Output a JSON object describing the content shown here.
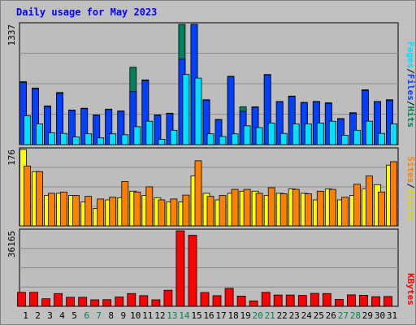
{
  "title": "Daily usage for May 2023",
  "colors": {
    "background": "#c0c0c0",
    "plot": "#bdbdbd",
    "hits": "#00805c",
    "files": "#0040ff",
    "pages": "#00e0ff",
    "visits": "#ffff00",
    "sites": "#ff8000",
    "kbytes": "#ff0000",
    "weekday_label": "#000000",
    "weekend_label": "#00805c",
    "title_text": "#0000ff"
  },
  "legend": {
    "pages": "Pages",
    "files": "Files",
    "hits": "Hits",
    "sites": "Sites",
    "visits": "Visits",
    "kbytes": "KBytes",
    "sep": "/"
  },
  "chart_data": {
    "type": "bar",
    "title": "Daily usage for May 2023",
    "x": [
      1,
      2,
      3,
      4,
      5,
      6,
      7,
      8,
      9,
      10,
      11,
      12,
      13,
      14,
      15,
      16,
      17,
      18,
      19,
      20,
      21,
      22,
      23,
      24,
      25,
      26,
      27,
      28,
      29,
      30,
      31
    ],
    "weekend_days": [
      6,
      7,
      13,
      14,
      20,
      21,
      27,
      28
    ],
    "panels": [
      {
        "name": "hits-files-pages",
        "ymax": 1337,
        "ymax_label": "1337",
        "series": [
          {
            "name": "Hits",
            "values": [
              700,
              630,
              430,
              580,
              385,
              405,
              330,
              395,
              375,
              860,
              720,
              330,
              350,
              1337,
              1337,
              500,
              280,
              760,
              420,
              420,
              780,
              480,
              540,
              470,
              480,
              465,
              290,
              355,
              610,
              480,
              500
            ]
          },
          {
            "name": "Files",
            "values": [
              690,
              620,
              425,
              570,
              380,
              400,
              325,
              390,
              370,
              590,
              710,
              325,
              345,
              950,
              1337,
              495,
              275,
              755,
              370,
              415,
              775,
              475,
              535,
              465,
              475,
              460,
              285,
              350,
              600,
              475,
              490
            ]
          },
          {
            "name": "Pages",
            "values": [
              320,
              230,
              130,
              125,
              85,
              120,
              75,
              120,
              110,
              200,
              260,
              60,
              160,
              780,
              740,
              120,
              90,
              120,
              210,
              190,
              240,
              125,
              230,
              230,
              240,
              260,
              105,
              160,
              260,
              125,
              230
            ]
          }
        ]
      },
      {
        "name": "sites-visits",
        "ymax": 176,
        "ymax_label": "176",
        "series": [
          {
            "name": "Visits",
            "values": [
              176,
              125,
              70,
              75,
              70,
              55,
              40,
              60,
              65,
              80,
              70,
              65,
              55,
              55,
              115,
              75,
              60,
              75,
              80,
              80,
              70,
              75,
              85,
              75,
              60,
              85,
              60,
              70,
              85,
              95,
              140
            ]
          },
          {
            "name": "Sites",
            "values": [
              138,
              125,
              75,
              78,
              70,
              68,
              62,
              66,
              102,
              78,
              90,
              60,
              62,
              71,
              150,
              68,
              70,
              84,
              84,
              75,
              88,
              74,
              84,
              74,
              80,
              84,
              66,
              96,
              115,
              78,
              148
            ]
          }
        ]
      },
      {
        "name": "kbytes",
        "ymax": 36165,
        "ymax_label": "36165",
        "series": [
          {
            "name": "KBytes",
            "values": [
              6700,
              6700,
              3600,
              6100,
              4300,
              4300,
              3100,
              3200,
              4500,
              6100,
              5100,
              3100,
              7700,
              36165,
              34000,
              6600,
              5100,
              8600,
              4900,
              2600,
              6700,
              5400,
              5400,
              5200,
              6200,
              6100,
              3300,
              5500,
              5300,
              4600,
              4700
            ]
          }
        ]
      }
    ]
  }
}
